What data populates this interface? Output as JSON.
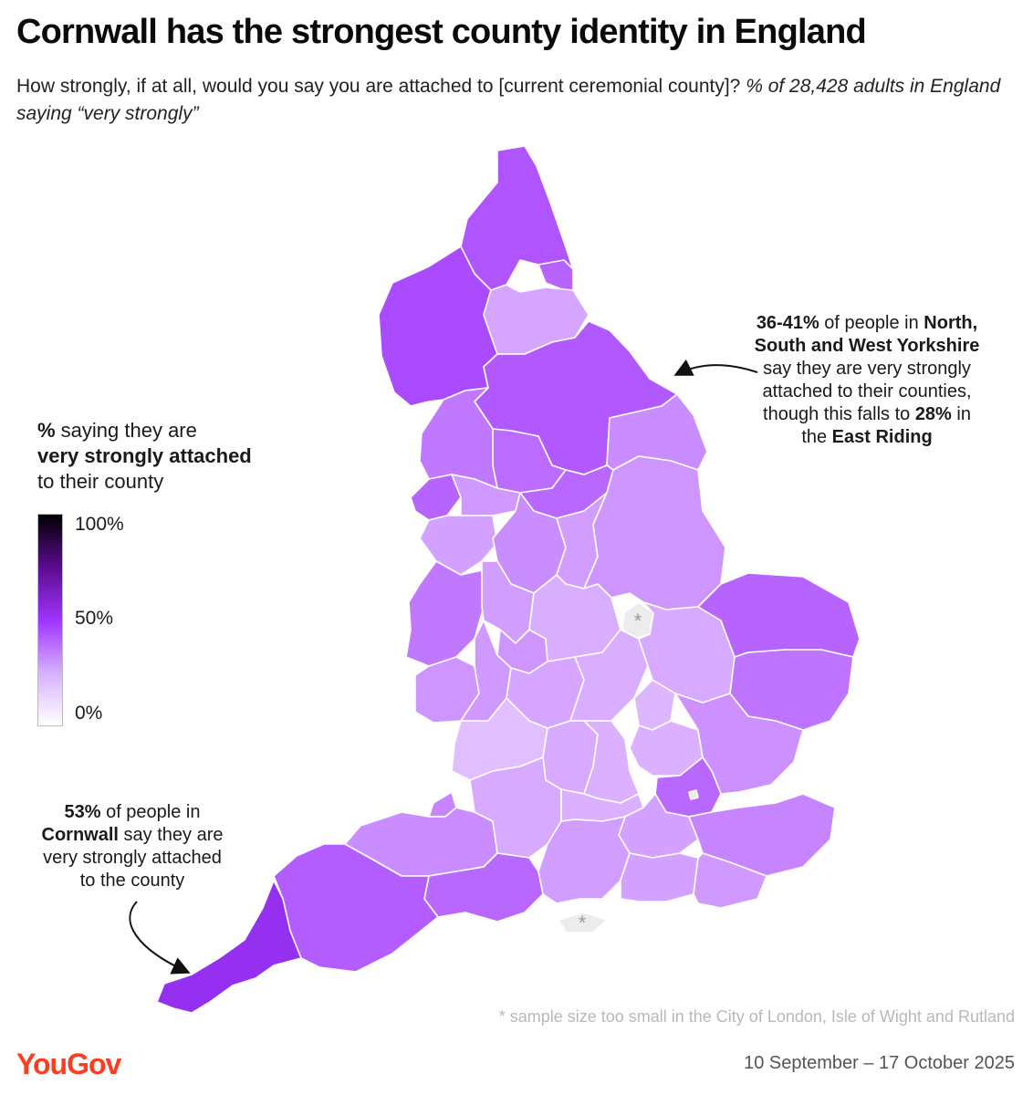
{
  "title": "Cornwall has the strongest county identity in England",
  "subtitle": {
    "question": "How strongly, if at all, would you say you are attached to [current ceremonial county]?",
    "sample": "% of 28,428 adults in England saying “very strongly”"
  },
  "legend": {
    "bold_prefix": "%",
    "line1_rest": " saying they are",
    "line2_bold": "very strongly attached",
    "line3": "to their county",
    "ticks": [
      "100%",
      "50%",
      "0%"
    ],
    "color_scale": [
      "#000000",
      "#a033ff",
      "#ffffff"
    ]
  },
  "annotations": {
    "yorkshire": {
      "pct": "36-41%",
      "text1": " of people in ",
      "bold1": "North,",
      "bold2": "South and West Yorkshire",
      "line3": "say they are very strongly",
      "line4": "attached to their counties,",
      "line5_pre": "though this falls to ",
      "line5_bold": "28%",
      "line5_post": " in",
      "line6_pre": "the ",
      "line6_bold": "East Riding"
    },
    "cornwall": {
      "pct": "53%",
      "text1": " of people in",
      "bold1": "Cornwall",
      "text2": " say they are",
      "line3": "very strongly attached",
      "line4": "to the county"
    }
  },
  "map_data": {
    "regions": [
      {
        "name": "Northumberland",
        "value": 42
      },
      {
        "name": "Tyne and Wear",
        "value": 38
      },
      {
        "name": "Cumbria",
        "value": 44
      },
      {
        "name": "Durham",
        "value": 22
      },
      {
        "name": "North Yorkshire",
        "value": 41
      },
      {
        "name": "East Riding of Yorkshire",
        "value": 28
      },
      {
        "name": "West Yorkshire",
        "value": 36
      },
      {
        "name": "South Yorkshire",
        "value": 37
      },
      {
        "name": "Lancashire",
        "value": 33
      },
      {
        "name": "Merseyside",
        "value": 38
      },
      {
        "name": "Greater Manchester",
        "value": 25
      },
      {
        "name": "Cheshire",
        "value": 23
      },
      {
        "name": "Derbyshire",
        "value": 28
      },
      {
        "name": "Nottinghamshire",
        "value": 24
      },
      {
        "name": "Lincolnshire",
        "value": 26
      },
      {
        "name": "Shropshire",
        "value": 33
      },
      {
        "name": "Staffordshire",
        "value": 24
      },
      {
        "name": "West Midlands",
        "value": 26
      },
      {
        "name": "Leicestershire",
        "value": 20
      },
      {
        "name": "Rutland",
        "value": null
      },
      {
        "name": "Herefordshire",
        "value": 26
      },
      {
        "name": "Worcestershire",
        "value": 25
      },
      {
        "name": "Warwickshire",
        "value": 22
      },
      {
        "name": "Northamptonshire",
        "value": 20
      },
      {
        "name": "Cambridgeshire",
        "value": 21
      },
      {
        "name": "Norfolk",
        "value": 38
      },
      {
        "name": "Suffolk",
        "value": 34
      },
      {
        "name": "Gloucestershire",
        "value": 16
      },
      {
        "name": "Oxfordshire",
        "value": 21
      },
      {
        "name": "Buckinghamshire",
        "value": 19
      },
      {
        "name": "Bedfordshire",
        "value": 18
      },
      {
        "name": "Hertfordshire",
        "value": 19
      },
      {
        "name": "Essex",
        "value": 27
      },
      {
        "name": "Greater London",
        "value": 37
      },
      {
        "name": "City of London",
        "value": null
      },
      {
        "name": "Bristol",
        "value": 30
      },
      {
        "name": "Somerset",
        "value": 28
      },
      {
        "name": "Wiltshire",
        "value": 21
      },
      {
        "name": "Berkshire",
        "value": 19
      },
      {
        "name": "Surrey",
        "value": 23
      },
      {
        "name": "Kent",
        "value": 30
      },
      {
        "name": "Hampshire",
        "value": 24
      },
      {
        "name": "West Sussex",
        "value": 23
      },
      {
        "name": "East Sussex",
        "value": 25
      },
      {
        "name": "Dorset",
        "value": 37
      },
      {
        "name": "Devon",
        "value": 40
      },
      {
        "name": "Cornwall",
        "value": 53
      },
      {
        "name": "Isle of Wight",
        "value": null
      }
    ],
    "no_data_marker": "*"
  },
  "footnote": "* sample size too small in the City of London, Isle of Wight and Rutland",
  "brand": "YouGov",
  "dates": "10 September – 17 October 2025"
}
